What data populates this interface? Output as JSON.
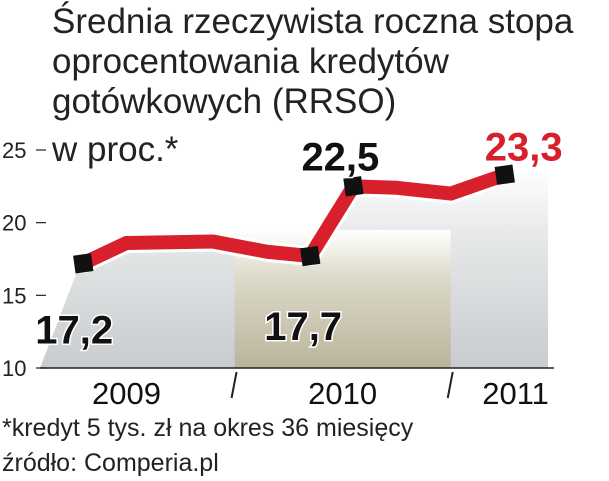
{
  "title_lines": [
    "Średnia rzeczywista roczna stopa",
    "oprocentowania kredytów",
    "gotówkowych (RRSO)",
    "w proc.*"
  ],
  "footnote": "*kredyt 5 tys. zł na okres 36 miesięcy",
  "source": "źródło: Comperia.pl",
  "colors": {
    "line": "#d7202c",
    "marker": "#111111",
    "highlight_label": "#d7202c",
    "year_band": "#b9b49c",
    "background_band": "#c8ccce"
  },
  "chart_data": {
    "type": "line",
    "title": "Średnia rzeczywista roczna stopa oprocentowania kredytów gotówkowych (RRSO)",
    "ylabel": "w proc.*",
    "ylim": [
      10,
      25
    ],
    "yticks": [
      10,
      15,
      20,
      25
    ],
    "xlim": [
      2008.8,
      2011.15
    ],
    "year_labels": [
      {
        "label": "2009",
        "x": 2009.2
      },
      {
        "label": "2010",
        "x": 2010.2
      },
      {
        "label": "2011",
        "x": 2011.0
      }
    ],
    "year_dividers": [
      2009.7,
      2010.7
    ],
    "highlight_band": [
      2009.7,
      2010.7
    ],
    "series": [
      {
        "values": [
          {
            "x": 2009.0,
            "y": 17.2
          },
          {
            "x": 2009.2,
            "y": 18.6
          },
          {
            "x": 2009.6,
            "y": 18.7
          },
          {
            "x": 2009.85,
            "y": 18.0
          },
          {
            "x": 2010.05,
            "y": 17.7
          },
          {
            "x": 2010.25,
            "y": 22.5
          },
          {
            "x": 2010.45,
            "y": 22.4
          },
          {
            "x": 2010.7,
            "y": 22.0
          },
          {
            "x": 2010.95,
            "y": 23.3
          }
        ]
      }
    ],
    "markers": [
      {
        "x": 2009.0,
        "y": 17.2,
        "label": "17,2",
        "highlight": false
      },
      {
        "x": 2010.05,
        "y": 17.7,
        "label": "17,7",
        "highlight": false
      },
      {
        "x": 2010.25,
        "y": 22.5,
        "label": "22,5",
        "highlight": false
      },
      {
        "x": 2010.95,
        "y": 23.3,
        "label": "23,3",
        "highlight": true
      }
    ]
  }
}
